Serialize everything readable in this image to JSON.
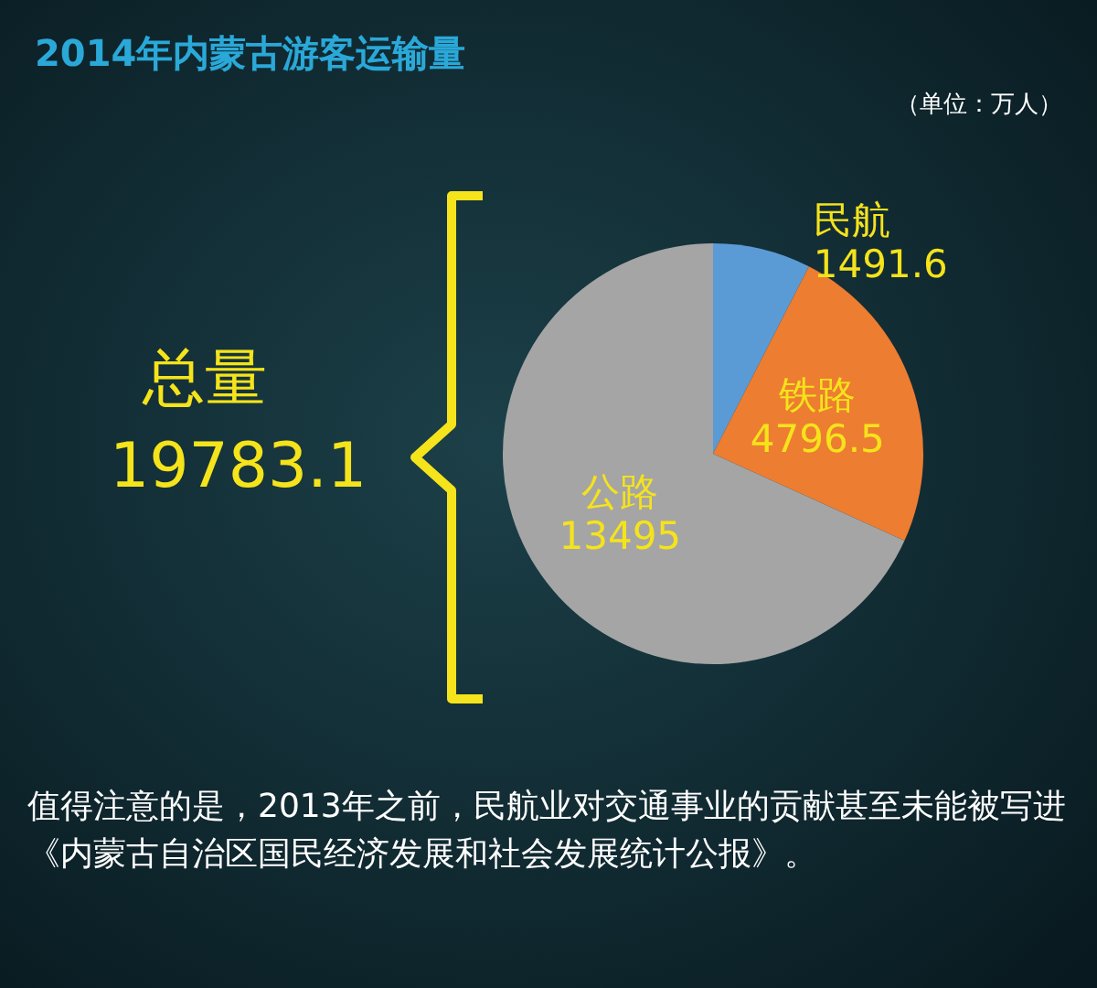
{
  "chart_data": {
    "type": "pie",
    "title": "2014年内蒙古游客运输量",
    "subtitle": "（单位：万人）",
    "categories": [
      "民航",
      "铁路",
      "公路"
    ],
    "values": [
      1491.6,
      4796.5,
      13495
    ],
    "colors": [
      "#5b9bd5",
      "#ed7d31",
      "#a5a5a5"
    ],
    "data_labels": true,
    "legend": false,
    "annotations": [
      "总量",
      "19783.1",
      "值得注意的是，2013年之前，民航业对交通事业的贡献甚至未能被写进《内蒙古自治区国民经济发展和社会发展统计公报》。"
    ]
  }
}
